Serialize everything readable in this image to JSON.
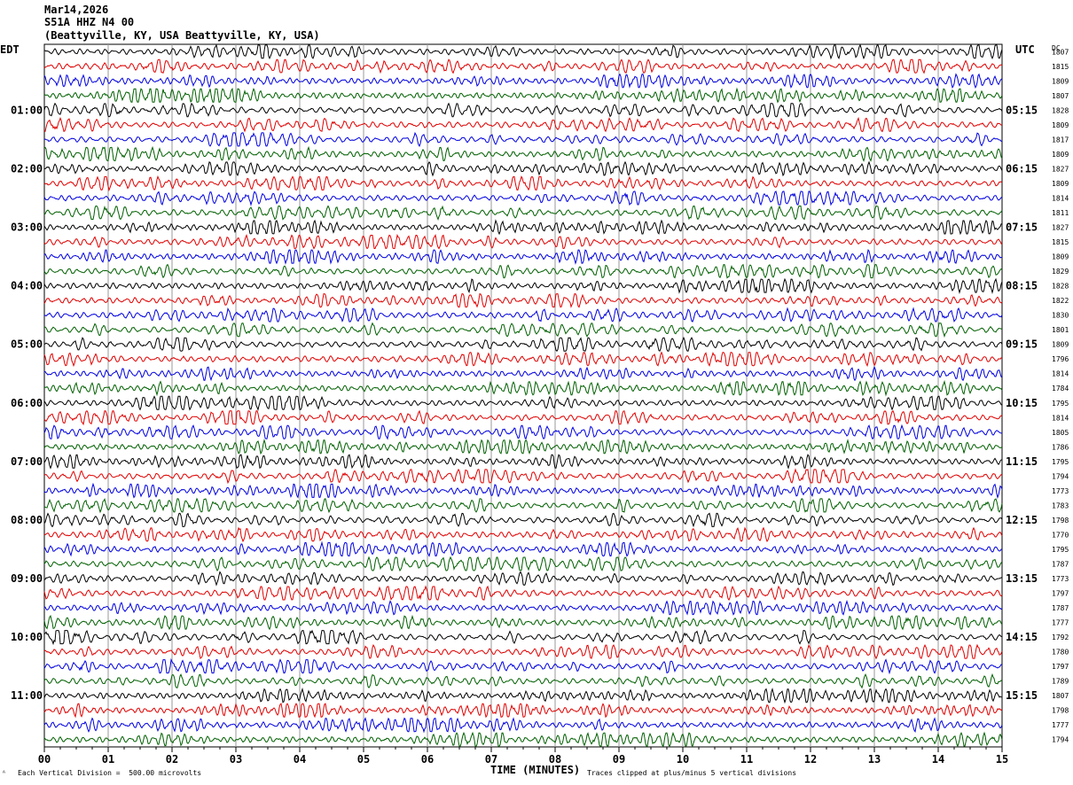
{
  "header": {
    "date": "Mar14,2026",
    "station": "S51A HHZ N4 00",
    "location": "(Beattyville, KY, USA Beattyville, KY, USA)"
  },
  "left_timezone": "EDT",
  "right_timezone": "UTC",
  "dc_header": "DC",
  "footer": {
    "scale_note": "Each Vertical Division =  500.00 microvolts",
    "clip_note": "Traces clipped at plus/minus 5 vertical divisions",
    "corner_mark": "ᴬ"
  },
  "colors": {
    "trace_cycle": [
      "#000000",
      "#e00000",
      "#0000e0",
      "#006000"
    ],
    "grid": "#9a9a9a"
  },
  "chart_data": {
    "type": "line",
    "xlabel": "TIME (MINUTES)",
    "x_ticks": [
      "00",
      "01",
      "02",
      "03",
      "04",
      "05",
      "06",
      "07",
      "08",
      "09",
      "10",
      "11",
      "12",
      "13",
      "14",
      "15"
    ],
    "xlim": [
      0,
      15
    ],
    "trace_count": 48,
    "left_hour_labels": [
      "01:00",
      "02:00",
      "03:00",
      "04:00",
      "05:00",
      "06:00",
      "07:00",
      "08:00",
      "09:00",
      "10:00",
      "11:00"
    ],
    "right_hour_labels": [
      "05:15",
      "06:15",
      "07:15",
      "08:15",
      "09:15",
      "10:15",
      "11:15",
      "12:15",
      "13:15",
      "14:15",
      "15:15"
    ],
    "hour_label_every_n_traces": 4,
    "first_hour_label_trace_index": 4,
    "dc_offsets": [
      "1807",
      "1815",
      "1809",
      "1807",
      "1828",
      "1809",
      "1817",
      "1809",
      "1827",
      "1809",
      "1814",
      "1811",
      "1827",
      "1815",
      "1809",
      "1829",
      "1828",
      "1822",
      "1830",
      "1801",
      "1809",
      "1796",
      "1814",
      "1784",
      "1795",
      "1814",
      "1805",
      "1786",
      "1795",
      "1794",
      "1773",
      "1783",
      "1798",
      "1770",
      "1795",
      "1787",
      "1773",
      "1797",
      "1787",
      "1777",
      "1792",
      "1780",
      "1797",
      "1789",
      "1807",
      "1798",
      "1777",
      "1794"
    ]
  }
}
